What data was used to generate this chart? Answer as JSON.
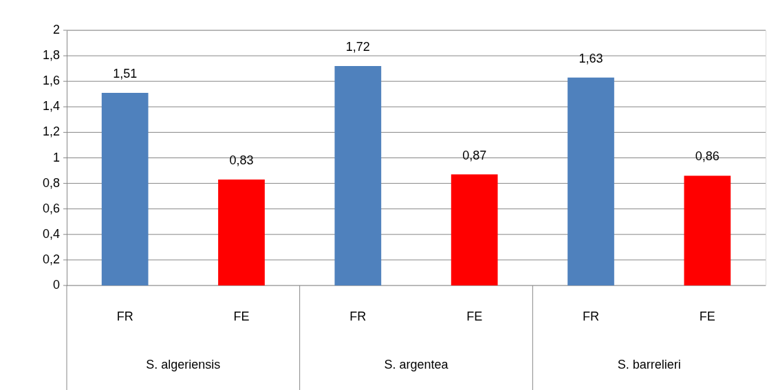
{
  "chart_data": {
    "type": "bar",
    "categories": [
      "FR",
      "FE",
      "FR",
      "FE",
      "FR",
      "FE"
    ],
    "values": [
      1.51,
      0.83,
      1.72,
      0.87,
      1.63,
      0.86
    ],
    "colors": [
      "#4f81bd",
      "#ff0000",
      "#4f81bd",
      "#ff0000",
      "#4f81bd",
      "#ff0000"
    ],
    "value_labels": [
      "1,51",
      "0,83",
      "1,72",
      "0,87",
      "1,63",
      "0,86"
    ],
    "annotations": [
      "S. algeriensis",
      "S. argentea",
      "S. barrelieri"
    ],
    "ylim": [
      0,
      2
    ],
    "yticks": [
      0,
      {
        "value": 0.2,
        "label": "0,2"
      },
      {
        "value": 0.4,
        "label": "0,4"
      },
      {
        "value": 0.6,
        "label": "0,6"
      },
      {
        "value": 0.8,
        "label": "0,8"
      },
      1,
      {
        "value": 1.2,
        "label": "1,2"
      },
      {
        "value": 1.4,
        "label": "1,4"
      },
      {
        "value": 1.6,
        "label": "1,6"
      },
      {
        "value": 1.8,
        "label": "1,8"
      },
      2
    ],
    "grid": "y"
  }
}
